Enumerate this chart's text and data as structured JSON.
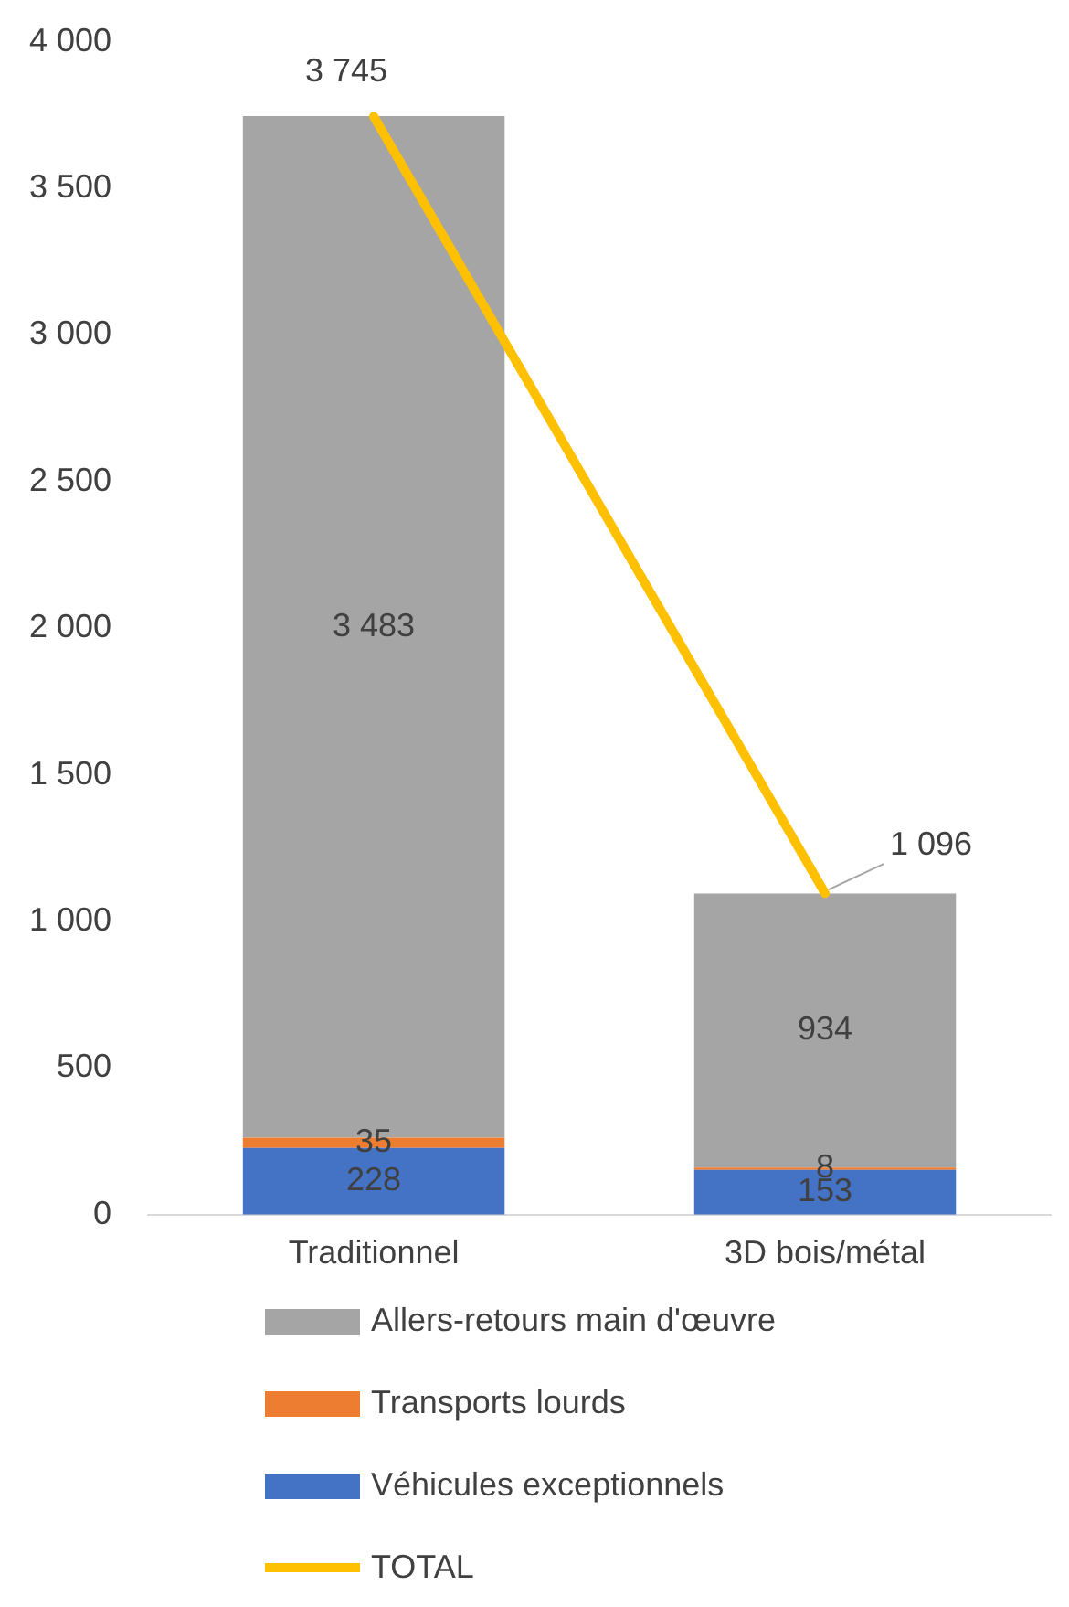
{
  "chart_data": {
    "type": "bar",
    "stacked": true,
    "categories": [
      "Traditionnel",
      "3D bois/métal"
    ],
    "series": [
      {
        "name": "Véhicules exceptionnels",
        "color": "#4472c4",
        "values": [
          228,
          153
        ],
        "value_labels": [
          "228",
          "153"
        ]
      },
      {
        "name": "Transports lourds",
        "color": "#ed7d31",
        "values": [
          35,
          8
        ],
        "value_labels": [
          "35",
          "8"
        ]
      },
      {
        "name": "Allers-retours main d'œuvre",
        "color": "#a5a5a5",
        "values": [
          3483,
          934
        ],
        "value_labels": [
          "3 483",
          "934"
        ]
      },
      {
        "name": "TOTAL",
        "type": "line",
        "color": "#ffc000",
        "values": [
          3745,
          1096
        ],
        "value_labels": [
          "3 745",
          "1 096"
        ]
      }
    ],
    "ylim": [
      0,
      4000
    ],
    "yticks": [
      {
        "value": 0,
        "label": "0"
      },
      {
        "value": 500,
        "label": "500"
      },
      {
        "value": 1000,
        "label": "1 000"
      },
      {
        "value": 1500,
        "label": "1 500"
      },
      {
        "value": 2000,
        "label": "2 000"
      },
      {
        "value": 2500,
        "label": "2 500"
      },
      {
        "value": 3000,
        "label": "3 000"
      },
      {
        "value": 3500,
        "label": "3 500"
      },
      {
        "value": 4000,
        "label": "4 000"
      }
    ],
    "grid": false,
    "legend": "bottom",
    "marker": "none",
    "line_style": "solid"
  }
}
